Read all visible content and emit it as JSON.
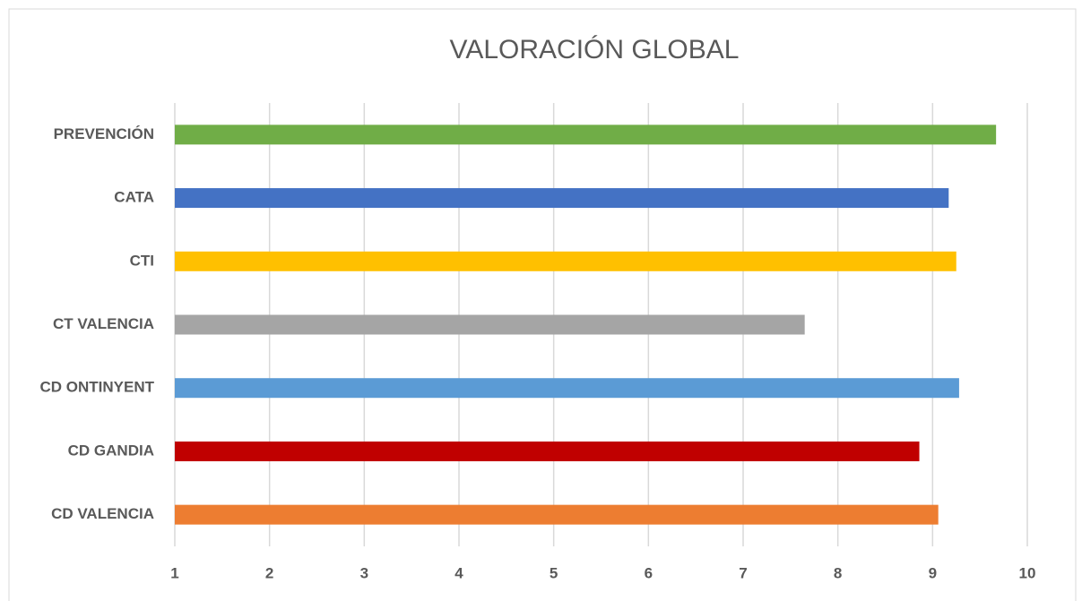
{
  "chart_data": {
    "type": "bar",
    "orientation": "horizontal",
    "title": "VALORACIÓN GLOBAL",
    "categories": [
      "PREVENCIÓN",
      "CATA",
      "CTI",
      "CT VALENCIA",
      "CD ONTINYENT",
      "CD GANDIA",
      "CD VALENCIA"
    ],
    "values": [
      9.67,
      9.17,
      9.25,
      7.65,
      9.28,
      8.86,
      9.06
    ],
    "colors": [
      "#70ad47",
      "#4472c4",
      "#ffc000",
      "#a5a5a5",
      "#5b9bd5",
      "#c00000",
      "#ed7d31"
    ],
    "xlim": [
      1,
      10
    ],
    "xticks": [
      1,
      2,
      3,
      4,
      5,
      6,
      7,
      8,
      9,
      10
    ],
    "grid": true
  }
}
